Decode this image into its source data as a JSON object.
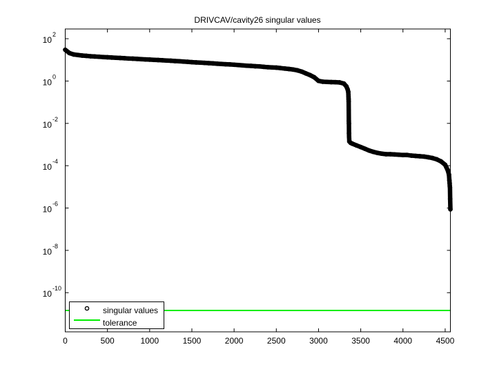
{
  "chart_data": {
    "type": "scatter",
    "title": "DRIVCAV/cavity26 singular values",
    "xlabel": "",
    "ylabel": "",
    "xlim": [
      0,
      4562
    ],
    "ylim_log10": [
      -11.85,
      2.46
    ],
    "yscale": "log",
    "grid": false,
    "legend_position": "lower-left",
    "x_ticks": [
      "0",
      "500",
      "1000",
      "1500",
      "2000",
      "2500",
      "3000",
      "3500",
      "4000",
      "4500"
    ],
    "x_tick_values": [
      0,
      500,
      1000,
      1500,
      2000,
      2500,
      3000,
      3500,
      4000,
      4500
    ],
    "y_ticks": [
      {
        "base": "10",
        "exp": "2",
        "value": 2
      },
      {
        "base": "10",
        "exp": "0",
        "value": 0
      },
      {
        "base": "10",
        "exp": "-2",
        "value": -2
      },
      {
        "base": "10",
        "exp": "-4",
        "value": -4
      },
      {
        "base": "10",
        "exp": "-6",
        "value": -6
      },
      {
        "base": "10",
        "exp": "-8",
        "value": -8
      },
      {
        "base": "10",
        "exp": "-10",
        "value": -10
      }
    ],
    "series": [
      {
        "name": "singular values",
        "marker": "circle",
        "color": "#000000",
        "x": [
          0,
          50,
          100,
          150,
          200,
          250,
          300,
          350,
          400,
          450,
          500,
          550,
          600,
          650,
          700,
          750,
          800,
          850,
          900,
          950,
          1000,
          1050,
          1100,
          1150,
          1200,
          1250,
          1300,
          1350,
          1400,
          1450,
          1500,
          1550,
          1600,
          1650,
          1700,
          1750,
          1800,
          1850,
          1900,
          1950,
          2000,
          2050,
          2100,
          2150,
          2200,
          2250,
          2300,
          2350,
          2400,
          2450,
          2500,
          2550,
          2600,
          2650,
          2700,
          2750,
          2800,
          2850,
          2900,
          2950,
          3000,
          3050,
          3100,
          3150,
          3200,
          3250,
          3300,
          3330,
          3345,
          3352,
          3354,
          3355,
          3356,
          3357,
          3358,
          3359,
          3360,
          3361,
          3362,
          3365,
          3380,
          3400,
          3450,
          3500,
          3550,
          3600,
          3650,
          3700,
          3750,
          3800,
          3850,
          3900,
          3950,
          4000,
          4050,
          4100,
          4150,
          4200,
          4250,
          4300,
          4350,
          4400,
          4450,
          4500,
          4530,
          4545,
          4550,
          4553,
          4555,
          4557,
          4559,
          4562
        ],
        "y": [
          30,
          21,
          18,
          17,
          16,
          15.5,
          14.8,
          14.4,
          14.0,
          13.6,
          13.3,
          12.9,
          12.6,
          12.3,
          12.0,
          11.6,
          11.4,
          11.1,
          10.8,
          10.5,
          10.3,
          10.0,
          9.8,
          9.6,
          9.3,
          9.1,
          8.8,
          8.6,
          8.3,
          8.1,
          7.8,
          7.6,
          7.4,
          7.2,
          7.0,
          6.8,
          6.6,
          6.4,
          6.2,
          6.1,
          5.9,
          5.7,
          5.5,
          5.3,
          5.2,
          5.0,
          4.9,
          4.7,
          4.5,
          4.4,
          4.3,
          4.1,
          3.9,
          3.7,
          3.5,
          3.2,
          2.8,
          2.3,
          1.9,
          1.5,
          1.02,
          0.93,
          0.91,
          0.89,
          0.88,
          0.86,
          0.76,
          0.56,
          0.4,
          0.31,
          0.22,
          0.18,
          0.14,
          0.11,
          0.041,
          0.013,
          0.01,
          0.0034,
          0.0023,
          0.0014,
          0.0012,
          0.0011,
          0.00091,
          0.00076,
          0.00063,
          0.00052,
          0.00045,
          0.0004,
          0.00037,
          0.00035,
          0.00035,
          0.00034,
          0.00033,
          0.00032,
          0.00032,
          0.0003,
          0.00029,
          0.00028,
          0.00027,
          0.00025,
          0.00023,
          0.0002,
          0.00016,
          0.00011,
          6.2e-05,
          3.8e-05,
          2e-05,
          1.5e-05,
          1.06e-05,
          9.4e-06,
          2.7e-06,
          8.7e-07
        ]
      },
      {
        "name": "tolerance",
        "marker": "line",
        "color": "#00ee00",
        "value": 1.45e-11
      }
    ]
  }
}
